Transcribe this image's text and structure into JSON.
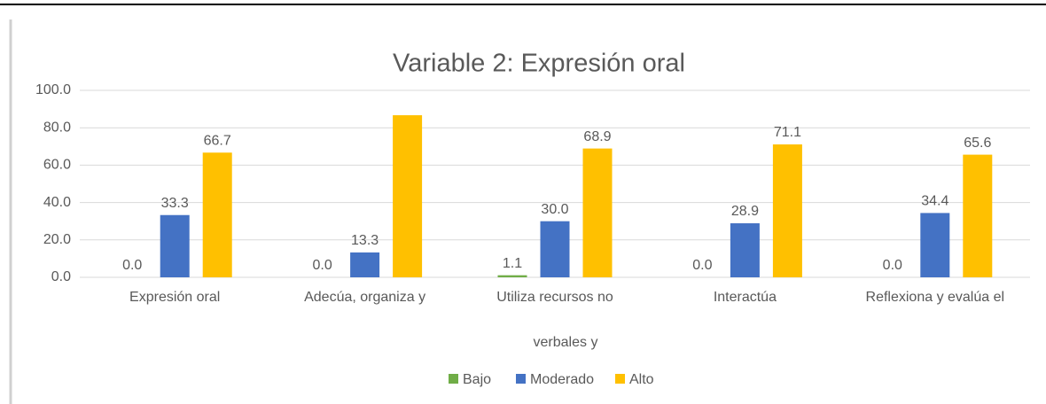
{
  "chart_data": {
    "type": "bar",
    "title": "Variable 2: Expresión oral",
    "categories": [
      "Expresión oral",
      "Adecúa, organiza y",
      "Utiliza recursos no",
      "Interactúa",
      "Reflexiona y evalúa el"
    ],
    "xlabel": "verbales y",
    "series": [
      {
        "name": "Bajo",
        "color": "#70ad47",
        "values": [
          0,
          0,
          1.1,
          0,
          0
        ],
        "value_labels": [
          "0.0",
          "0.0",
          "1.1",
          "0.0",
          "0.0"
        ]
      },
      {
        "name": "Moderado",
        "color": "#4472c4",
        "values": [
          33.3,
          13.3,
          30,
          28.9,
          34.4
        ],
        "value_labels": [
          "33.3",
          "13.3",
          "30.0",
          "28.9",
          "34.4"
        ]
      },
      {
        "name": "Alto",
        "color": "#ffc000",
        "values": [
          66.7,
          86.7,
          68.9,
          71.1,
          65.6
        ],
        "value_labels": [
          "66.7",
          null,
          "68.9",
          "71.1",
          "65.6"
        ]
      }
    ],
    "ylim": [
      0,
      100
    ],
    "yticks": [
      {
        "value": 0,
        "label": "0.0"
      },
      {
        "value": 20,
        "label": "20.0"
      },
      {
        "value": 40,
        "label": "40.0"
      },
      {
        "value": 60,
        "label": "60.0"
      },
      {
        "value": 80,
        "label": "80.0"
      },
      {
        "value": 100,
        "label": "100.0"
      }
    ],
    "grid": true,
    "legend": "bottom"
  }
}
